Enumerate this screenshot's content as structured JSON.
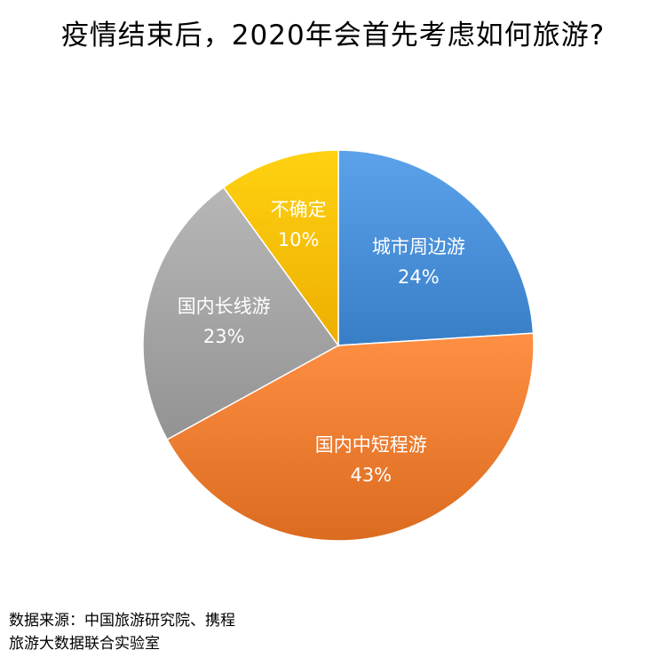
{
  "chart_data": {
    "type": "pie",
    "title": "疫情结束后，2020年会首先考虑如何旅游?",
    "slices": [
      {
        "label": "城市周边游",
        "value": 24,
        "value_label": "24%",
        "color": "#4A90D9"
      },
      {
        "label": "国内中短程游",
        "value": 43,
        "value_label": "43%",
        "color": "#ED7D31"
      },
      {
        "label": "国内长线游",
        "value": 23,
        "value_label": "23%",
        "color": "#A5A5A5"
      },
      {
        "label": "不确定",
        "value": 10,
        "value_label": "10%",
        "color": "#FFC000"
      }
    ]
  },
  "source": {
    "line1": "数据来源：中国旅游研究院、携程",
    "line2": "旅游大数据联合实验室"
  }
}
